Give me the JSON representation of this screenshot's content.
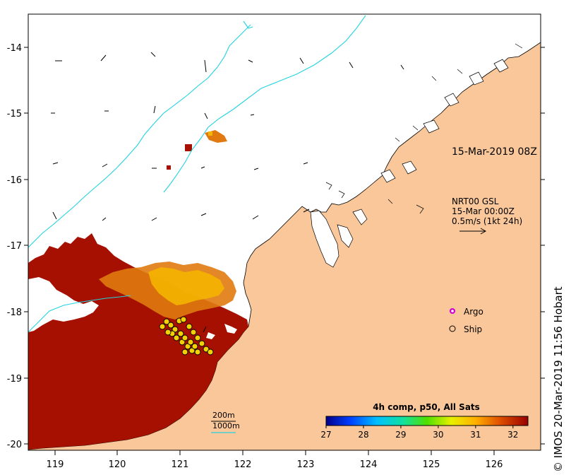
{
  "map": {
    "lon_ticks": [
      "119",
      "120",
      "121",
      "122",
      "123",
      "124",
      "125",
      "126"
    ],
    "lat_ticks": [
      "-14",
      "-15",
      "-16",
      "-17",
      "-18",
      "-19",
      "-20"
    ],
    "colors": {
      "land": "#f9c79a",
      "ocean": "#ffffff",
      "isobath_200": "#000000",
      "isobath_1000": "#22d3e0"
    }
  },
  "overlay": {
    "timestamp": "15-Mar-2019 08Z",
    "current_source": "NRT00 GSL",
    "current_date": "15-Mar 00:00Z",
    "current_scale": "0.5m/s (1kt 24h)"
  },
  "legend": {
    "argo_label": "Argo",
    "ship_label": "Ship",
    "argo_color": "#d400d4"
  },
  "isobath_legend": {
    "label_200": "200m",
    "label_1000": "1000m"
  },
  "colorbar": {
    "title": "4h comp, p50, All Sats",
    "ticks": [
      "27",
      "28",
      "29",
      "30",
      "31",
      "32"
    ],
    "min": 27,
    "max": 32.4
  },
  "credit": "© IMOS 20-Mar-2019 11:56 Hobart"
}
